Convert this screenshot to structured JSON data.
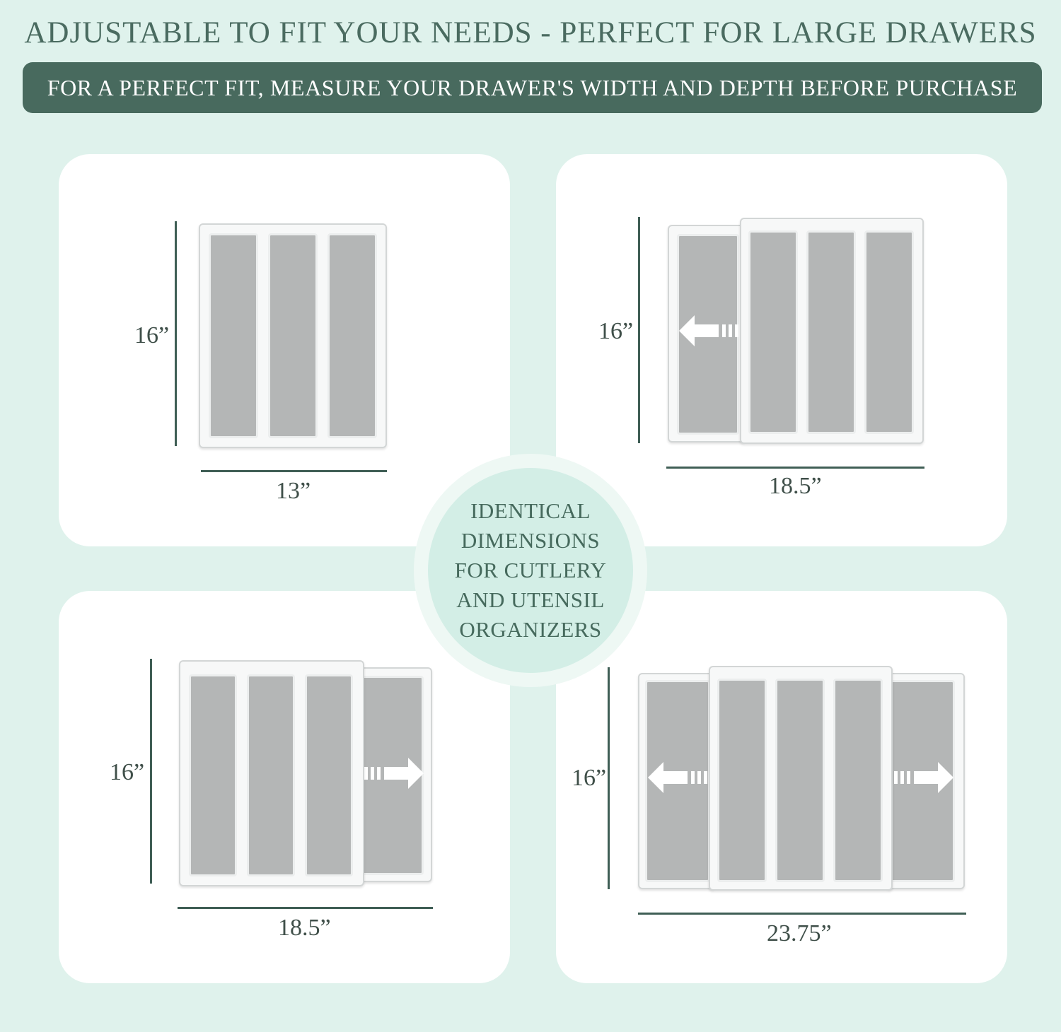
{
  "header": {
    "title": "ADJUSTABLE TO FIT YOUR NEEDS - PERFECT FOR LARGE DRAWERS",
    "banner": "FOR A PERFECT FIT, MEASURE YOUR DRAWER'S WIDTH AND DEPTH BEFORE PURCHASE"
  },
  "colors": {
    "background": "#dff2ec",
    "accent": "#486a5e",
    "panel": "#ffffff",
    "slot": "#b4b6b6"
  },
  "panels": [
    {
      "height_label": "16”",
      "width_label": "13”"
    },
    {
      "height_label": "16”",
      "width_label": "18.5”"
    },
    {
      "height_label": "16”",
      "width_label": "18.5”"
    },
    {
      "height_label": "16”",
      "width_label": "23.75”"
    }
  ],
  "center_badge": {
    "lines": [
      "IDENTICAL",
      "DIMENSIONS",
      "FOR CUTLERY",
      "AND UTENSIL",
      "ORGANIZERS"
    ]
  },
  "icons": {
    "expand_left": "arrow-left-icon",
    "expand_right": "arrow-right-icon"
  }
}
